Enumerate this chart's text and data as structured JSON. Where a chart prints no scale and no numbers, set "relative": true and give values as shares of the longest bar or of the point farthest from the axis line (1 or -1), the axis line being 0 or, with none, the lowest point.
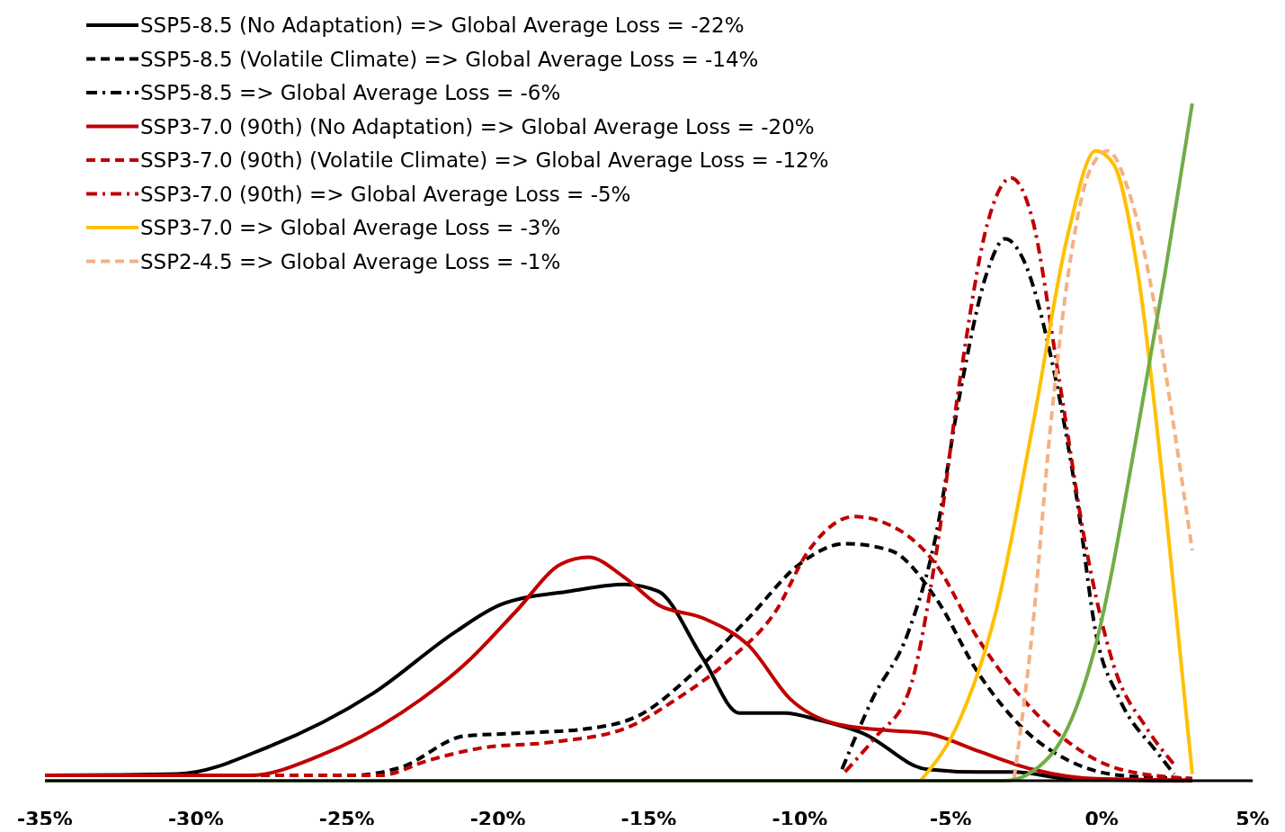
{
  "chart_data": {
    "type": "line",
    "relative": true,
    "legend": "top left",
    "xlim": [
      -35,
      5
    ],
    "xticks": [
      {
        "value": -35,
        "label": "-35%"
      },
      {
        "value": -30,
        "label": "-30%"
      },
      {
        "value": -25,
        "label": "-25%"
      },
      {
        "value": -20,
        "label": "-20%"
      },
      {
        "value": -15,
        "label": "-15%"
      },
      {
        "value": -10,
        "label": "-10%"
      },
      {
        "value": -5,
        "label": "-5%"
      },
      {
        "value": 0,
        "label": "0%"
      },
      {
        "value": 5,
        "label": "5%"
      }
    ],
    "series": [
      {
        "name": "SSP5-8.5 (No Adaptation) => Global Average Loss = -22%",
        "color": "#000000",
        "line_style": "solid",
        "x": [
          -35,
          -30.6,
          -27.6,
          -24.1,
          -21.4,
          -19.9,
          -17.6,
          -15.8,
          -14.7,
          -13.2,
          -12,
          -10.5,
          -9.4,
          -7.9,
          -5.8,
          -4.1,
          -2.9,
          -1.1,
          3
        ],
        "values": [
          0.008,
          0.01,
          0.05,
          0.13,
          0.22,
          0.26,
          0.28,
          0.29,
          0.28,
          0.18,
          0.1,
          0.1,
          0.09,
          0.07,
          0.017,
          0.013,
          0.013,
          0.003,
          0
        ]
      },
      {
        "name": "SSP5-8.5 (Volatile Climate) => Global Average Loss = -14%",
        "color": "#000000",
        "line_style": "dashed",
        "x": [
          -35,
          -24.8,
          -23.2,
          -21.1,
          -19.4,
          -17,
          -15.3,
          -13.5,
          -11.7,
          -10,
          -8.5,
          -7,
          -5.5,
          -4.1,
          -2.6,
          -1.1,
          0.6,
          3
        ],
        "values": [
          0.008,
          0.008,
          0.02,
          0.066,
          0.07,
          0.077,
          0.097,
          0.16,
          0.24,
          0.32,
          0.35,
          0.34,
          0.27,
          0.16,
          0.077,
          0.03,
          0.008,
          0.003
        ]
      },
      {
        "name": "SSP5-8.5 => Global Average Loss = -6%",
        "color": "#000000",
        "line_style": "dashdot",
        "x": [
          -8.6,
          -7.6,
          -6.4,
          -5.5,
          -4.7,
          -3.8,
          -3.2,
          -2.6,
          -1.7,
          -0.8,
          -0.2,
          0.6,
          1.8,
          2.4
        ],
        "values": [
          0.017,
          0.12,
          0.22,
          0.36,
          0.57,
          0.75,
          0.8,
          0.77,
          0.63,
          0.41,
          0.22,
          0.12,
          0.044,
          0.01
        ]
      },
      {
        "name": "SSP3-7.0 (90th) (No Adaptation) => Global Average Loss = -20%",
        "color": "#c00000",
        "line_style": "solid",
        "x": [
          -35,
          -28.2,
          -25.9,
          -23.2,
          -20.9,
          -19.4,
          -17.9,
          -17,
          -15.8,
          -14.7,
          -13.2,
          -11.7,
          -10.3,
          -8.8,
          -7,
          -5.8,
          -4.1,
          -2.3,
          -0.2,
          3
        ],
        "values": [
          0.008,
          0.008,
          0.037,
          0.1,
          0.18,
          0.25,
          0.32,
          0.33,
          0.3,
          0.26,
          0.24,
          0.2,
          0.12,
          0.084,
          0.074,
          0.07,
          0.044,
          0.017,
          0.003,
          0.001
        ]
      },
      {
        "name": "SSP3-7.0 (90th) (Volatile Climate) => Global Average Loss = -12%",
        "color": "#c00000",
        "line_style": "dashed",
        "x": [
          -35,
          -23.9,
          -22.3,
          -20.6,
          -18.2,
          -15.8,
          -14.1,
          -12.3,
          -10.8,
          -9.7,
          -8.2,
          -6.7,
          -5.5,
          -4.1,
          -2.6,
          -1.1,
          0.6,
          3
        ],
        "values": [
          0.008,
          0.008,
          0.03,
          0.048,
          0.057,
          0.077,
          0.12,
          0.18,
          0.25,
          0.34,
          0.39,
          0.37,
          0.32,
          0.21,
          0.12,
          0.057,
          0.017,
          0.003
        ]
      },
      {
        "name": "SSP3-7.0 (90th) => Global Average Loss = -5%",
        "color": "#c00000",
        "line_style": "dashdot",
        "x": [
          -8.5,
          -7.5,
          -6.4,
          -5.5,
          -4.7,
          -3.8,
          -3,
          -2.3,
          -1.4,
          -0.5,
          0.4,
          1.5,
          2.4
        ],
        "values": [
          0.013,
          0.064,
          0.13,
          0.33,
          0.59,
          0.82,
          0.89,
          0.83,
          0.59,
          0.34,
          0.17,
          0.077,
          0.024
        ]
      },
      {
        "name": "SSP3-7.0 => Global Average Loss = -3%",
        "color": "#ffc000",
        "line_style": "solid",
        "x": [
          -6,
          -4.7,
          -3.5,
          -2.3,
          -1.1,
          -0.2,
          0.4,
          1.2,
          2.1,
          3
        ],
        "values": [
          0,
          0.09,
          0.25,
          0.52,
          0.81,
          0.93,
          0.91,
          0.75,
          0.41,
          0.01
        ]
      },
      {
        "name": "SSP2-4.5 => Global Average Loss = -1%",
        "color": "#f4b183",
        "line_style": "dashed",
        "x": [
          -2.9,
          -2.3,
          -1.7,
          -1.1,
          -0.4,
          0.2,
          0.9,
          1.8,
          2.4,
          3
        ],
        "values": [
          0.004,
          0.22,
          0.52,
          0.75,
          0.9,
          0.93,
          0.87,
          0.69,
          0.52,
          0.34
        ]
      },
      {
        "color": "#70ad47",
        "line_style": "solid",
        "x": [
          -35,
          -3.2,
          -1.7,
          -0.2,
          1.2,
          2.1,
          3
        ],
        "values": [
          0,
          0,
          0.037,
          0.2,
          0.52,
          0.75,
          1
        ]
      }
    ]
  }
}
